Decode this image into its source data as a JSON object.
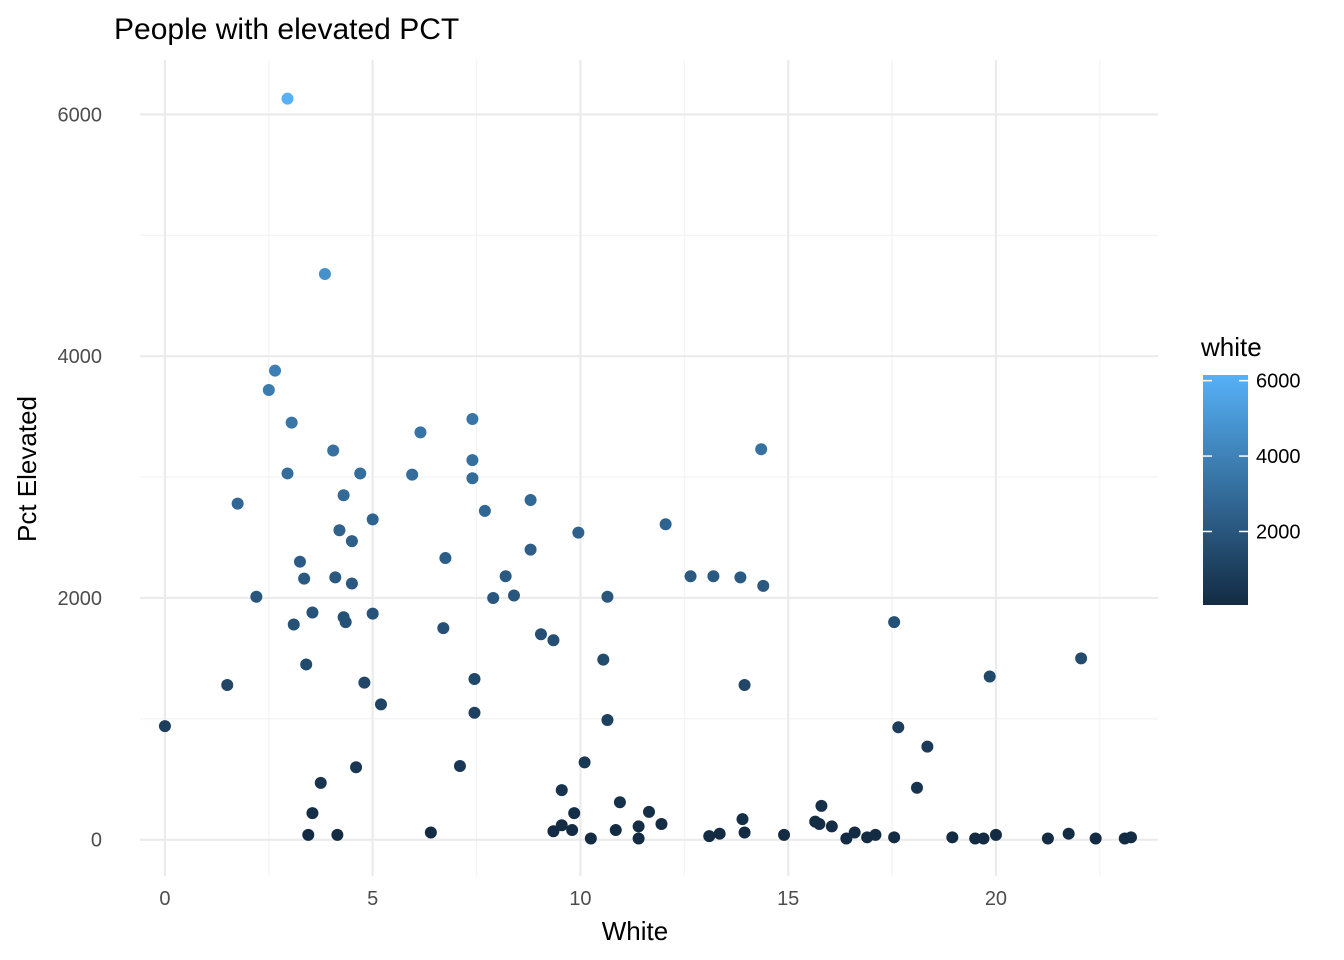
{
  "chart_data": {
    "type": "scatter",
    "title": "People with elevated PCT",
    "xlabel": "White",
    "ylabel": "Pct Elevated",
    "xlim": [
      -0.6,
      23.9
    ],
    "ylim": [
      -300,
      6450
    ],
    "x_ticks": [
      0,
      5,
      10,
      15,
      20
    ],
    "x_tick_labels": [
      "0",
      "5",
      "10",
      "15",
      "20"
    ],
    "y_ticks": [
      0,
      2000,
      4000,
      6000
    ],
    "y_tick_labels": [
      "0",
      "2000",
      "4000",
      "6000"
    ],
    "grid": true,
    "legend": {
      "title": "white",
      "placement": "right",
      "range": [
        50,
        6150
      ],
      "ticks": [
        2000,
        4000,
        6000
      ],
      "tick_labels": [
        "2000",
        "4000",
        "6000"
      ],
      "color_low": "#132B43",
      "color_high": "#56B1F7"
    },
    "points": [
      [
        0,
        940
      ],
      [
        1.5,
        1280
      ],
      [
        1.75,
        2780
      ],
      [
        2.2,
        2010
      ],
      [
        2.5,
        3720
      ],
      [
        2.65,
        3880
      ],
      [
        2.95,
        3030
      ],
      [
        2.95,
        6130
      ],
      [
        3.05,
        3450
      ],
      [
        3.1,
        1780
      ],
      [
        3.25,
        2300
      ],
      [
        3.35,
        2160
      ],
      [
        3.4,
        1450
      ],
      [
        3.45,
        40
      ],
      [
        3.55,
        220
      ],
      [
        3.55,
        1880
      ],
      [
        3.75,
        470
      ],
      [
        3.85,
        4680
      ],
      [
        4.05,
        3220
      ],
      [
        4.1,
        2170
      ],
      [
        4.15,
        40
      ],
      [
        4.2,
        2560
      ],
      [
        4.3,
        2850
      ],
      [
        4.3,
        1840
      ],
      [
        4.35,
        1800
      ],
      [
        4.5,
        2470
      ],
      [
        4.5,
        2120
      ],
      [
        4.6,
        600
      ],
      [
        4.7,
        3030
      ],
      [
        4.8,
        1300
      ],
      [
        5.0,
        1870
      ],
      [
        5.0,
        2650
      ],
      [
        5.2,
        1120
      ],
      [
        5.95,
        3020
      ],
      [
        6.15,
        3370
      ],
      [
        6.4,
        60
      ],
      [
        6.7,
        1750
      ],
      [
        6.75,
        2330
      ],
      [
        7.1,
        610
      ],
      [
        7.4,
        3480
      ],
      [
        7.4,
        3140
      ],
      [
        7.4,
        2990
      ],
      [
        7.45,
        1050
      ],
      [
        7.45,
        1330
      ],
      [
        7.7,
        2720
      ],
      [
        7.9,
        2000
      ],
      [
        8.2,
        2180
      ],
      [
        8.4,
        2020
      ],
      [
        8.8,
        2810
      ],
      [
        8.8,
        2400
      ],
      [
        9.05,
        1700
      ],
      [
        9.35,
        1650
      ],
      [
        9.35,
        70
      ],
      [
        9.55,
        410
      ],
      [
        9.55,
        120
      ],
      [
        9.8,
        80
      ],
      [
        9.85,
        220
      ],
      [
        9.95,
        2540
      ],
      [
        10.1,
        640
      ],
      [
        10.25,
        10
      ],
      [
        10.55,
        1490
      ],
      [
        10.65,
        2010
      ],
      [
        10.65,
        990
      ],
      [
        10.85,
        80
      ],
      [
        10.95,
        310
      ],
      [
        11.4,
        10
      ],
      [
        11.4,
        110
      ],
      [
        11.65,
        230
      ],
      [
        11.95,
        130
      ],
      [
        12.05,
        2610
      ],
      [
        12.65,
        2180
      ],
      [
        13.1,
        30
      ],
      [
        13.2,
        2180
      ],
      [
        13.35,
        50
      ],
      [
        13.85,
        2170
      ],
      [
        13.9,
        170
      ],
      [
        13.95,
        1280
      ],
      [
        13.95,
        60
      ],
      [
        14.35,
        3230
      ],
      [
        14.4,
        2100
      ],
      [
        14.9,
        40
      ],
      [
        15.65,
        150
      ],
      [
        15.75,
        130
      ],
      [
        15.8,
        280
      ],
      [
        16.05,
        110
      ],
      [
        16.4,
        10
      ],
      [
        16.6,
        60
      ],
      [
        16.9,
        20
      ],
      [
        17.1,
        40
      ],
      [
        17.55,
        20
      ],
      [
        17.55,
        1800
      ],
      [
        17.65,
        930
      ],
      [
        18.1,
        430
      ],
      [
        18.35,
        770
      ],
      [
        18.95,
        20
      ],
      [
        19.5,
        10
      ],
      [
        19.7,
        10
      ],
      [
        19.85,
        1350
      ],
      [
        20.0,
        40
      ],
      [
        21.25,
        10
      ],
      [
        21.75,
        50
      ],
      [
        22.05,
        1500
      ],
      [
        22.4,
        10
      ],
      [
        23.1,
        10
      ],
      [
        23.25,
        20
      ]
    ]
  }
}
